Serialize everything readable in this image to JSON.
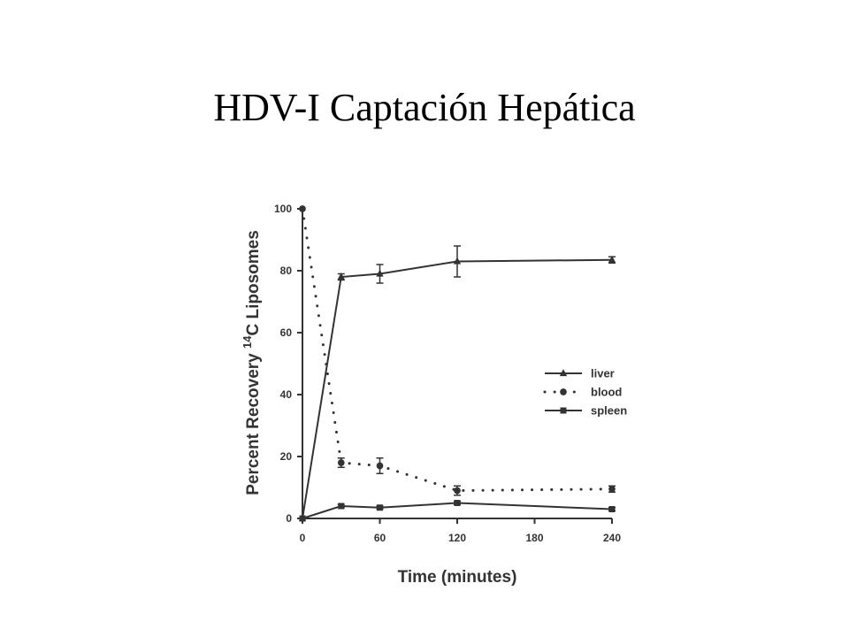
{
  "slide": {
    "title": "HDV-I Captación Hepática"
  },
  "chart_data": {
    "type": "line",
    "xlabel": "Time (minutes)",
    "ylabel_prefix": "Percent Recovery ",
    "ylabel_sup": "14",
    "ylabel_suffix": "C Liposomes",
    "xticks": [
      0,
      60,
      120,
      180,
      240
    ],
    "xtick_labels": [
      "0",
      "60",
      "120",
      "180",
      "240"
    ],
    "yticks": [
      0,
      20,
      40,
      60,
      80,
      100
    ],
    "ytick_labels": [
      "0",
      "20",
      "40",
      "60",
      "80",
      "100"
    ],
    "xlim": [
      0,
      240
    ],
    "ylim": [
      0,
      100
    ],
    "grid": false,
    "legend_position": "right",
    "series": [
      {
        "name": "liver",
        "marker": "triangle",
        "line": "solid",
        "x": [
          0,
          30,
          60,
          120,
          240
        ],
        "y": [
          0,
          78,
          79,
          83,
          83.5
        ],
        "err": [
          0,
          1,
          3,
          5,
          1
        ]
      },
      {
        "name": "blood",
        "marker": "circle",
        "line": "dotted",
        "x": [
          0,
          30,
          60,
          120,
          240
        ],
        "y": [
          100,
          18,
          17,
          9,
          9.5
        ],
        "err": [
          0,
          1.5,
          2.5,
          1.5,
          1
        ]
      },
      {
        "name": "spleen",
        "marker": "square",
        "line": "solid",
        "x": [
          0,
          30,
          60,
          120,
          240
        ],
        "y": [
          0,
          4,
          3.5,
          5,
          3
        ],
        "err": [
          0,
          0.5,
          0.5,
          0.5,
          0.5
        ]
      }
    ]
  }
}
